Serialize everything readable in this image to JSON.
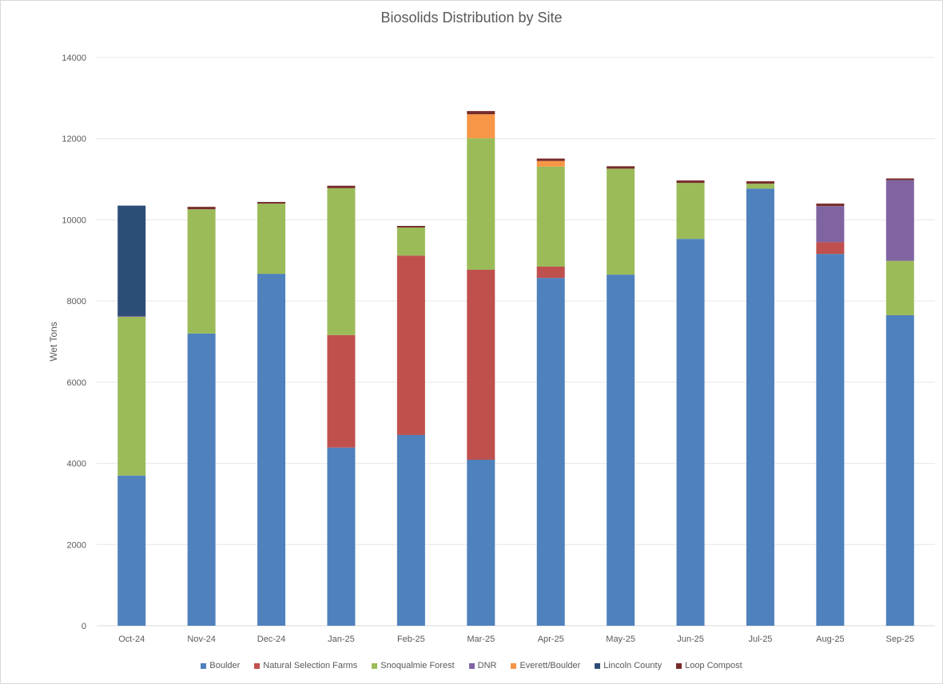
{
  "chart_data": {
    "type": "bar",
    "stacked": true,
    "title": "Biosolids Distribution by Site",
    "xlabel": "",
    "ylabel": "Wet Tons",
    "ylim": [
      0,
      14000
    ],
    "yticks": [
      0,
      2000,
      4000,
      6000,
      8000,
      10000,
      12000,
      14000
    ],
    "grid": true,
    "legend_position": "bottom",
    "categories": [
      "Oct-24",
      "Nov-24",
      "Dec-24",
      "Jan-25",
      "Feb-25",
      "Mar-25",
      "Apr-25",
      "May-25",
      "Jun-25",
      "Jul-25",
      "Aug-25",
      "Sep-25"
    ],
    "series": [
      {
        "name": "Boulder",
        "color": "#4f81bd",
        "values": [
          3700,
          7200,
          8670,
          4390,
          4700,
          4090,
          8570,
          8650,
          9530,
          10770,
          9160,
          7650
        ]
      },
      {
        "name": "Natural Selection Farms",
        "color": "#c0504d",
        "values": [
          0,
          0,
          0,
          2770,
          4420,
          4680,
          280,
          0,
          0,
          0,
          290,
          0
        ]
      },
      {
        "name": "Snoqualmie Forest",
        "color": "#9bbb59",
        "values": [
          3910,
          3060,
          1730,
          3620,
          690,
          3240,
          2460,
          2610,
          1380,
          120,
          0,
          1340
        ]
      },
      {
        "name": "DNR",
        "color": "#8064a2",
        "values": [
          20,
          0,
          0,
          0,
          0,
          0,
          0,
          0,
          0,
          0,
          890,
          1990
        ]
      },
      {
        "name": "Everett/Boulder",
        "color": "#f79646",
        "values": [
          0,
          0,
          0,
          0,
          0,
          590,
          140,
          0,
          0,
          0,
          0,
          0
        ]
      },
      {
        "name": "Lincoln County",
        "color": "#2c4d75",
        "values": [
          2720,
          0,
          0,
          0,
          0,
          0,
          0,
          0,
          0,
          0,
          0,
          0
        ]
      },
      {
        "name": "Loop Compost",
        "color": "#772c2a",
        "values": [
          0,
          60,
          40,
          60,
          40,
          80,
          60,
          60,
          60,
          60,
          60,
          40
        ]
      }
    ]
  }
}
